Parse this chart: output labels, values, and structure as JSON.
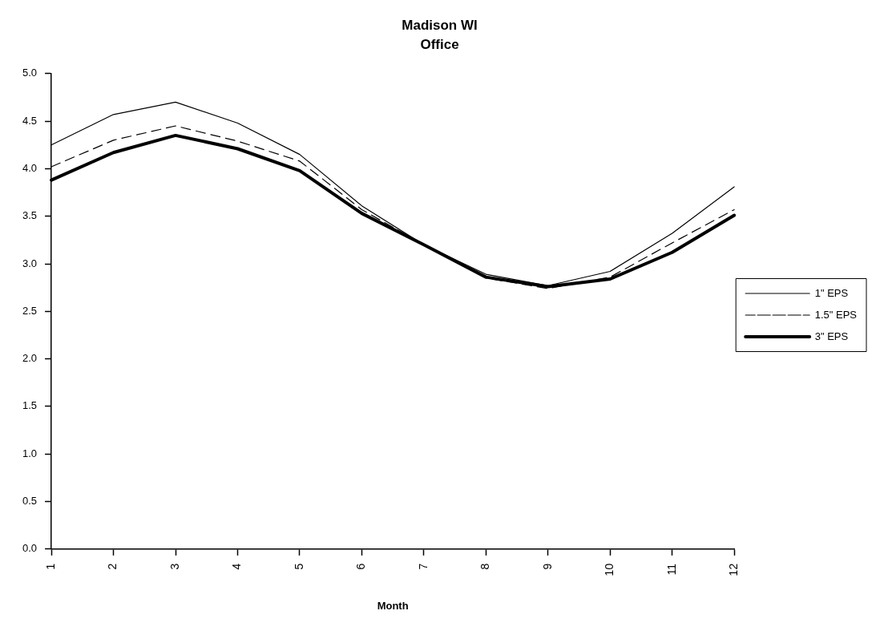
{
  "chart_data": {
    "type": "line",
    "title": "Madison WI",
    "subtitle": "Office",
    "xlabel": "Month",
    "categories": [
      "1",
      "2",
      "3",
      "4",
      "5",
      "6",
      "7",
      "8",
      "9",
      "10",
      "11",
      "12"
    ],
    "series": [
      {
        "name": "1\" EPS",
        "color": "#000000",
        "line_style": "solid",
        "values": [
          4.25,
          4.57,
          4.7,
          4.48,
          4.15,
          3.61,
          3.2,
          2.89,
          2.77,
          2.92,
          3.32,
          3.81
        ]
      },
      {
        "name": "1.5\" EPS",
        "color": "#000000",
        "line_style": "dashed",
        "values": [
          4.02,
          4.3,
          4.45,
          4.29,
          4.08,
          3.57,
          3.2,
          2.85,
          2.74,
          2.86,
          3.22,
          3.57
        ]
      },
      {
        "name": "3\" EPS",
        "color": "#000000",
        "line_style": "solid",
        "values": [
          3.88,
          4.17,
          4.35,
          4.21,
          3.98,
          3.53,
          3.2,
          2.86,
          2.76,
          2.84,
          3.12,
          3.51
        ]
      }
    ],
    "ylim": [
      0,
      5
    ],
    "yticks": [
      {
        "value": 0,
        "label": "0.0"
      },
      {
        "value": 0.5,
        "label": "0.5"
      },
      {
        "value": 1,
        "label": "1.0"
      },
      {
        "value": 1.5,
        "label": "1.5"
      },
      {
        "value": 2,
        "label": "2.0"
      },
      {
        "value": 2.5,
        "label": "2.5"
      },
      {
        "value": 3,
        "label": "3.0"
      },
      {
        "value": 3.5,
        "label": "3.5"
      },
      {
        "value": 4,
        "label": "4.0"
      },
      {
        "value": 4.5,
        "label": "4.5"
      },
      {
        "value": 5,
        "label": "5.0"
      }
    ],
    "grid": false,
    "legend": "right",
    "marker": "none"
  }
}
